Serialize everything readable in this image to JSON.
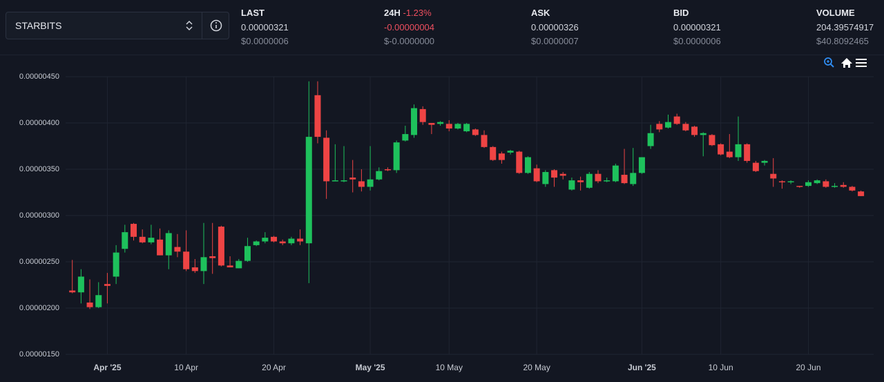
{
  "header": {
    "market": "STARBITS",
    "stats": [
      {
        "label": "LAST",
        "value": "0.00000321",
        "value_usd": "$0.0000006"
      },
      {
        "label": "24H",
        "change": "-1.23%",
        "value": "-0.00000004",
        "value_usd": "$-0.0000000"
      },
      {
        "label": "ASK",
        "value": "0.00000326",
        "value_usd": "$0.0000007"
      },
      {
        "label": "BID",
        "value": "0.00000321",
        "value_usd": "$0.0000006"
      },
      {
        "label": "VOLUME",
        "value": "204.39574917",
        "value_usd": "$40.8092465"
      }
    ]
  },
  "chart_data": {
    "type": "candlestick",
    "up_color": "#1ec15c",
    "down_color": "#ee4444",
    "grid": true,
    "ylim": [
      1.5e-06,
      4.5e-06
    ],
    "yticks": [
      {
        "value": 4.5e-06,
        "label": "0.00000450"
      },
      {
        "value": 4e-06,
        "label": "0.00000400"
      },
      {
        "value": 3.5e-06,
        "label": "0.00000350"
      },
      {
        "value": 3e-06,
        "label": "0.00000300"
      },
      {
        "value": 2.5e-06,
        "label": "0.00000250"
      },
      {
        "value": 2e-06,
        "label": "0.00000200"
      },
      {
        "value": 1.5e-06,
        "label": "0.00000150"
      }
    ],
    "xlim": [
      "2025-03-27",
      "2025-06-28"
    ],
    "xticks": [
      {
        "value": "2025-04-01",
        "label": "Apr '25"
      },
      {
        "value": "2025-04-10",
        "label": "10 Apr"
      },
      {
        "value": "2025-04-20",
        "label": "20 Apr"
      },
      {
        "value": "2025-05-01",
        "label": "May '25"
      },
      {
        "value": "2025-05-10",
        "label": "10 May"
      },
      {
        "value": "2025-05-20",
        "label": "20 May"
      },
      {
        "value": "2025-06-01",
        "label": "Jun '25"
      },
      {
        "value": "2025-06-10",
        "label": "10 Jun"
      },
      {
        "value": "2025-06-20",
        "label": "20 Jun"
      }
    ],
    "x": [
      "2025-03-28",
      "2025-03-29",
      "2025-03-30",
      "2025-03-31",
      "2025-04-01",
      "2025-04-02",
      "2025-04-03",
      "2025-04-04",
      "2025-04-05",
      "2025-04-06",
      "2025-04-07",
      "2025-04-08",
      "2025-04-09",
      "2025-04-10",
      "2025-04-11",
      "2025-04-12",
      "2025-04-13",
      "2025-04-14",
      "2025-04-15",
      "2025-04-16",
      "2025-04-17",
      "2025-04-18",
      "2025-04-19",
      "2025-04-20",
      "2025-04-21",
      "2025-04-22",
      "2025-04-23",
      "2025-04-24",
      "2025-04-25",
      "2025-04-26",
      "2025-04-27",
      "2025-04-28",
      "2025-04-29",
      "2025-04-30",
      "2025-05-01",
      "2025-05-02",
      "2025-05-03",
      "2025-05-04",
      "2025-05-05",
      "2025-05-06",
      "2025-05-07",
      "2025-05-08",
      "2025-05-09",
      "2025-05-10",
      "2025-05-11",
      "2025-05-12",
      "2025-05-13",
      "2025-05-14",
      "2025-05-15",
      "2025-05-16",
      "2025-05-17",
      "2025-05-18",
      "2025-05-19",
      "2025-05-20",
      "2025-05-21",
      "2025-05-22",
      "2025-05-23",
      "2025-05-24",
      "2025-05-25",
      "2025-05-26",
      "2025-05-27",
      "2025-05-28",
      "2025-05-29",
      "2025-05-30",
      "2025-05-31",
      "2025-06-01",
      "2025-06-02",
      "2025-06-03",
      "2025-06-04",
      "2025-06-05",
      "2025-06-06",
      "2025-06-07",
      "2025-06-08",
      "2025-06-09",
      "2025-06-10",
      "2025-06-11",
      "2025-06-12",
      "2025-06-13",
      "2025-06-14",
      "2025-06-15",
      "2025-06-16",
      "2025-06-17",
      "2025-06-18",
      "2025-06-19",
      "2025-06-20",
      "2025-06-21",
      "2025-06-22",
      "2025-06-23",
      "2025-06-24",
      "2025-06-25",
      "2025-06-26"
    ],
    "open": [
      2.19e-06,
      2.17e-06,
      2.06e-06,
      2.01e-06,
      2.26e-06,
      2.34e-06,
      2.64e-06,
      2.91e-06,
      2.77e-06,
      2.71e-06,
      2.74e-06,
      2.57e-06,
      2.66e-06,
      2.61e-06,
      2.44e-06,
      2.4e-06,
      2.56e-06,
      2.88e-06,
      2.46e-06,
      2.43e-06,
      2.51e-06,
      2.68e-06,
      2.72e-06,
      2.77e-06,
      2.72e-06,
      2.7e-06,
      2.75e-06,
      2.7e-06,
      4.3e-06,
      3.84e-06,
      3.37e-06,
      3.37e-06,
      3.41e-06,
      3.37e-06,
      3.31e-06,
      3.39e-06,
      3.5e-06,
      3.49e-06,
      3.81e-06,
      3.87e-06,
      4.15e-06,
      4e-06,
      3.99e-06,
      3.99e-06,
      3.94e-06,
      3.91e-06,
      3.93e-06,
      3.87e-06,
      3.74e-06,
      3.67e-06,
      3.68e-06,
      3.69e-06,
      3.46e-06,
      3.51e-06,
      3.34e-06,
      3.49e-06,
      3.45e-06,
      3.28e-06,
      3.38e-06,
      3.3e-06,
      3.45e-06,
      3.37e-06,
      3.37e-06,
      3.44e-06,
      3.34e-06,
      3.46e-06,
      3.75e-06,
      3.99e-06,
      3.95e-06,
      4.07e-06,
      3.99e-06,
      3.96e-06,
      3.87e-06,
      3.87e-06,
      3.77e-06,
      3.69e-06,
      3.63e-06,
      3.77e-06,
      3.57e-06,
      3.57e-06,
      3.45e-06,
      3.37e-06,
      3.36e-06,
      3.32e-06,
      3.32e-06,
      3.35e-06,
      3.37e-06,
      3.31e-06,
      3.33e-06,
      3.31e-06,
      3.26e-06
    ],
    "high": [
      2.52e-06,
      2.42e-06,
      2.31e-06,
      2.28e-06,
      2.38e-06,
      2.68e-06,
      2.9e-06,
      2.92e-06,
      2.85e-06,
      2.9e-06,
      2.86e-06,
      2.84e-06,
      2.8e-06,
      2.84e-06,
      2.53e-06,
      2.92e-06,
      2.92e-06,
      2.89e-06,
      2.56e-06,
      2.53e-06,
      2.76e-06,
      2.73e-06,
      2.82e-06,
      2.78e-06,
      2.74e-06,
      2.77e-06,
      2.85e-06,
      4.45e-06,
      4.45e-06,
      3.92e-06,
      3.77e-06,
      3.75e-06,
      3.6e-06,
      3.5e-06,
      3.75e-06,
      3.52e-06,
      3.52e-06,
      3.81e-06,
      3.97e-06,
      4.2e-06,
      4.18e-06,
      4e-06,
      4.02e-06,
      4.03e-06,
      4e-06,
      4e-06,
      3.94e-06,
      3.92e-06,
      3.75e-06,
      3.69e-06,
      3.71e-06,
      3.7e-06,
      3.64e-06,
      3.55e-06,
      3.49e-06,
      3.5e-06,
      3.47e-06,
      3.41e-06,
      3.42e-06,
      3.47e-06,
      3.49e-06,
      3.41e-06,
      3.56e-06,
      3.72e-06,
      3.73e-06,
      3.63e-06,
      3.98e-06,
      4.02e-06,
      4.09e-06,
      4.1e-06,
      4.01e-06,
      3.97e-06,
      3.9e-06,
      3.88e-06,
      3.78e-06,
      3.88e-06,
      4.07e-06,
      3.78e-06,
      3.59e-06,
      3.6e-06,
      3.62e-06,
      3.38e-06,
      3.38e-06,
      3.32e-06,
      3.38e-06,
      3.39e-06,
      3.39e-06,
      3.35e-06,
      3.36e-06,
      3.32e-06,
      3.27e-06
    ],
    "low": [
      2.16e-06,
      2.05e-06,
      1.99e-06,
      2e-06,
      2.05e-06,
      2.26e-06,
      2.6e-06,
      2.73e-06,
      2.7e-06,
      2.69e-06,
      2.57e-06,
      2.42e-06,
      2.55e-06,
      2.4e-06,
      2.38e-06,
      2.26e-06,
      2.37e-06,
      2.45e-06,
      2.44e-06,
      2.43e-06,
      2.5e-06,
      2.67e-06,
      2.7e-06,
      2.71e-06,
      2.68e-06,
      2.68e-06,
      2.68e-06,
      2.27e-06,
      3.78e-06,
      3.18e-06,
      3.37e-06,
      3.36e-06,
      3.25e-06,
      3.26e-06,
      3.27e-06,
      3.38e-06,
      3.48e-06,
      3.46e-06,
      3.8e-06,
      3.84e-06,
      3.98e-06,
      3.88e-06,
      3.97e-06,
      3.91e-06,
      3.93e-06,
      3.9e-06,
      3.86e-06,
      3.73e-06,
      3.59e-06,
      3.56e-06,
      3.66e-06,
      3.45e-06,
      3.45e-06,
      3.36e-06,
      3.31e-06,
      3.31e-06,
      3.39e-06,
      3.27e-06,
      3.27e-06,
      3.29e-06,
      3.35e-06,
      3.36e-06,
      3.36e-06,
      3.34e-06,
      3.32e-06,
      3.45e-06,
      3.72e-06,
      3.9e-06,
      3.94e-06,
      3.98e-06,
      3.91e-06,
      3.85e-06,
      3.64e-06,
      3.75e-06,
      3.65e-06,
      3.62e-06,
      3.59e-06,
      3.57e-06,
      3.47e-06,
      3.54e-06,
      3.31e-06,
      3.29e-06,
      3.34e-06,
      3.3e-06,
      3.31e-06,
      3.34e-06,
      3.3e-06,
      3.3e-06,
      3.3e-06,
      3.26e-06,
      3.21e-06
    ],
    "close": [
      2.17e-06,
      2.34e-06,
      2.01e-06,
      2.14e-06,
      2.24e-06,
      2.6e-06,
      2.82e-06,
      2.77e-06,
      2.71e-06,
      2.76e-06,
      2.57e-06,
      2.81e-06,
      2.61e-06,
      2.42e-06,
      2.4e-06,
      2.55e-06,
      2.54e-06,
      2.46e-06,
      2.44e-06,
      2.51e-06,
      2.67e-06,
      2.72e-06,
      2.76e-06,
      2.72e-06,
      2.7e-06,
      2.75e-06,
      2.72e-06,
      3.85e-06,
      3.85e-06,
      3.37e-06,
      3.38e-06,
      3.38e-06,
      3.39e-06,
      3.31e-06,
      3.39e-06,
      3.48e-06,
      3.49e-06,
      3.79e-06,
      3.88e-06,
      4.16e-06,
      4.01e-06,
      3.98e-06,
      4.01e-06,
      3.94e-06,
      3.99e-06,
      3.99e-06,
      3.87e-06,
      3.74e-06,
      3.6e-06,
      3.6e-06,
      3.7e-06,
      3.46e-06,
      3.63e-06,
      3.37e-06,
      3.47e-06,
      3.41e-06,
      3.43e-06,
      3.38e-06,
      3.36e-06,
      3.45e-06,
      3.37e-06,
      3.38e-06,
      3.54e-06,
      3.35e-06,
      3.46e-06,
      3.63e-06,
      3.89e-06,
      3.93e-06,
      4.01e-06,
      3.99e-06,
      3.92e-06,
      3.87e-06,
      3.89e-06,
      3.76e-06,
      3.66e-06,
      3.63e-06,
      3.77e-06,
      3.59e-06,
      3.48e-06,
      3.59e-06,
      3.4e-06,
      3.36e-06,
      3.37e-06,
      3.31e-06,
      3.36e-06,
      3.38e-06,
      3.31e-06,
      3.32e-06,
      3.31e-06,
      3.27e-06,
      3.21e-06
    ]
  }
}
